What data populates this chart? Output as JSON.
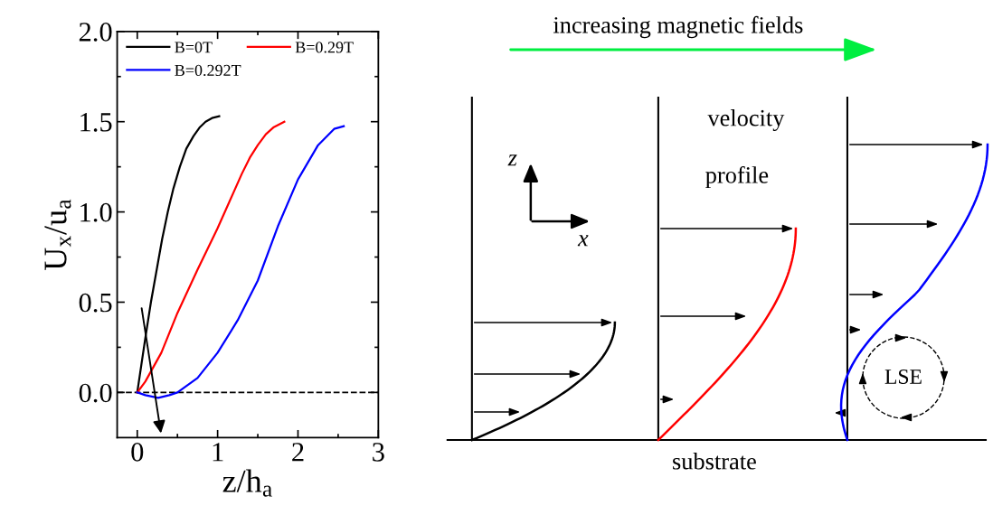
{
  "chart_data": [
    {
      "type": "line",
      "xlabel": "z/h$_{a}$",
      "ylabel": "U$_{x}$/u$_{a}$",
      "xlim": [
        -0.25,
        3
      ],
      "ylim": [
        -0.25,
        2
      ],
      "xticks": [
        0,
        1,
        2,
        3,
        {
          "value": 0.5,
          "label": null
        },
        {
          "value": 1.5,
          "label": null
        },
        {
          "value": 2.5,
          "label": null
        }
      ],
      "yticks": [
        {
          "value": 0,
          "label": "0.0"
        },
        {
          "value": 0.5,
          "label": "0.5"
        },
        {
          "value": 1,
          "label": "1.0"
        },
        {
          "value": 1.5,
          "label": "1.5"
        },
        {
          "value": 2,
          "label": "2.0"
        },
        {
          "value": 0.25,
          "label": null
        },
        {
          "value": 0.75,
          "label": null
        },
        {
          "value": 1.25,
          "label": null
        },
        {
          "value": 1.75,
          "label": null
        }
      ],
      "grid": false,
      "legend": "top left",
      "marker": "none",
      "line_style": "solid",
      "ref_lines": [
        {
          "axis": "y",
          "value": 0,
          "color": "#000000",
          "line_style": "dashed"
        }
      ],
      "series": [
        {
          "name": "B=0T",
          "color": "#000000",
          "x": [
            0,
            0.05,
            0.1,
            0.17,
            0.25,
            0.31,
            0.38,
            0.45,
            0.53,
            0.61,
            0.7,
            0.78,
            0.85,
            0.93,
            1.02
          ],
          "values": [
            0,
            0.15,
            0.3,
            0.5,
            0.7,
            0.85,
            1.0,
            1.13,
            1.25,
            1.35,
            1.42,
            1.47,
            1.5,
            1.52,
            1.53
          ]
        },
        {
          "name": "B=0.29T",
          "color": "#ff0000",
          "x": [
            0,
            0.1,
            0.3,
            0.5,
            0.75,
            1.0,
            1.2,
            1.3,
            1.4,
            1.5,
            1.6,
            1.7,
            1.83
          ],
          "values": [
            0,
            0.06,
            0.22,
            0.44,
            0.68,
            0.91,
            1.11,
            1.21,
            1.3,
            1.37,
            1.43,
            1.47,
            1.5
          ]
        },
        {
          "name": "B=0.292T",
          "color": "#0000ff",
          "x": [
            0,
            0.1,
            0.26,
            0.4,
            0.5,
            0.75,
            1.0,
            1.25,
            1.5,
            1.75,
            2.0,
            2.25,
            2.45,
            2.57
          ],
          "values": [
            0,
            -0.015,
            -0.03,
            -0.015,
            0,
            0.08,
            0.22,
            0.4,
            0.62,
            0.92,
            1.18,
            1.37,
            1.46,
            1.475
          ]
        }
      ]
    },
    {
      "type": "other",
      "annotations": [
        "increasing magnetic fields",
        "velocity",
        "profile",
        "z",
        "x",
        "LSE",
        "substrate"
      ]
    }
  ]
}
